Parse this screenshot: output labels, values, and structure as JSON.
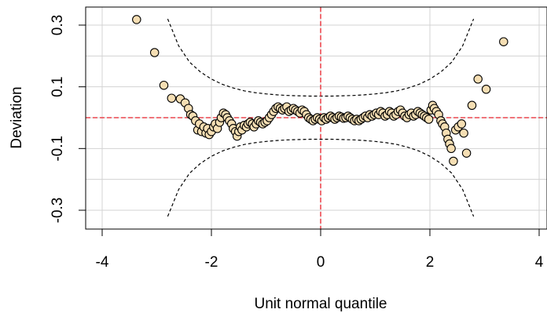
{
  "chart_data": {
    "type": "scatter",
    "title": "",
    "xlabel": "Unit normal quantile",
    "ylabel": "Deviation",
    "xlim": [
      -4,
      4
    ],
    "ylim": [
      -0.3,
      0.3
    ],
    "x_ticks": [
      -4,
      -2,
      0,
      2,
      4
    ],
    "x_tick_labels": [
      "-4",
      "-2",
      "0",
      "2",
      "4"
    ],
    "y_ticks": [
      -0.3,
      -0.1,
      0.1,
      0.3
    ],
    "y_tick_labels": [
      "-0.3",
      "-0.1",
      "0.1",
      "0.3"
    ],
    "grid": true,
    "colors": {
      "point_fill": "#f5deb3",
      "point_stroke": "#000000",
      "reference_line": "#e8202a",
      "envelope": "#000000",
      "grid": "#d3d3d3"
    },
    "reference_lines": {
      "horizontal_y": 0,
      "vertical_x": 0
    },
    "confidence_band": [
      [
        -2.8,
        -0.32,
        0.32
      ],
      [
        -2.6,
        -0.233,
        0.233
      ],
      [
        -2.4,
        -0.18,
        0.18
      ],
      [
        -2.2,
        -0.148,
        0.148
      ],
      [
        -2.0,
        -0.125,
        0.125
      ],
      [
        -1.8,
        -0.108,
        0.108
      ],
      [
        -1.6,
        -0.096,
        0.096
      ],
      [
        -1.4,
        -0.087,
        0.087
      ],
      [
        -1.2,
        -0.081,
        0.081
      ],
      [
        -1.0,
        -0.077,
        0.077
      ],
      [
        -0.8,
        -0.074,
        0.074
      ],
      [
        -0.6,
        -0.072,
        0.072
      ],
      [
        -0.4,
        -0.071,
        0.071
      ],
      [
        -0.2,
        -0.07,
        0.07
      ],
      [
        0.0,
        -0.07,
        0.07
      ],
      [
        0.2,
        -0.07,
        0.07
      ],
      [
        0.4,
        -0.071,
        0.071
      ],
      [
        0.6,
        -0.072,
        0.072
      ],
      [
        0.8,
        -0.074,
        0.074
      ],
      [
        1.0,
        -0.077,
        0.077
      ],
      [
        1.2,
        -0.081,
        0.081
      ],
      [
        1.4,
        -0.087,
        0.087
      ],
      [
        1.6,
        -0.096,
        0.096
      ],
      [
        1.8,
        -0.108,
        0.108
      ],
      [
        2.0,
        -0.125,
        0.125
      ],
      [
        2.2,
        -0.148,
        0.148
      ],
      [
        2.4,
        -0.18,
        0.18
      ],
      [
        2.6,
        -0.233,
        0.233
      ],
      [
        2.8,
        -0.32,
        0.32
      ]
    ],
    "series": [
      {
        "points": [
          [
            -3.37,
            0.318
          ],
          [
            -3.04,
            0.211
          ],
          [
            -2.87,
            0.105
          ],
          [
            -2.73,
            0.063
          ],
          [
            -2.57,
            0.061
          ],
          [
            -2.48,
            0.048
          ],
          [
            -2.42,
            0.03
          ],
          [
            -2.38,
            0.01
          ],
          [
            -2.34,
            0.005
          ],
          [
            -2.29,
            -0.01
          ],
          [
            -2.25,
            -0.04
          ],
          [
            -2.22,
            -0.02
          ],
          [
            -2.18,
            -0.045
          ],
          [
            -2.14,
            -0.03
          ],
          [
            -2.1,
            -0.05
          ],
          [
            -2.07,
            -0.035
          ],
          [
            -2.04,
            -0.055
          ],
          [
            -2.0,
            -0.045
          ],
          [
            -1.96,
            -0.03
          ],
          [
            -1.93,
            -0.02
          ],
          [
            -1.89,
            -0.035
          ],
          [
            -1.85,
            -0.015
          ],
          [
            -1.82,
            0.0
          ],
          [
            -1.78,
            0.015
          ],
          [
            -1.74,
            0.01
          ],
          [
            -1.71,
            0.0
          ],
          [
            -1.67,
            -0.01
          ],
          [
            -1.63,
            -0.02
          ],
          [
            -1.6,
            -0.035
          ],
          [
            -1.56,
            -0.045
          ],
          [
            -1.53,
            -0.06
          ],
          [
            -1.5,
            -0.045
          ],
          [
            -1.47,
            -0.03
          ],
          [
            -1.44,
            -0.04
          ],
          [
            -1.4,
            -0.025
          ],
          [
            -1.36,
            -0.03
          ],
          [
            -1.33,
            -0.02
          ],
          [
            -1.29,
            -0.015
          ],
          [
            -1.25,
            -0.02
          ],
          [
            -1.22,
            -0.03
          ],
          [
            -1.18,
            -0.02
          ],
          [
            -1.14,
            -0.01
          ],
          [
            -1.1,
            -0.015
          ],
          [
            -1.06,
            -0.02
          ],
          [
            -1.02,
            -0.015
          ],
          [
            -0.98,
            -0.01
          ],
          [
            -0.94,
            0.0
          ],
          [
            -0.9,
            0.01
          ],
          [
            -0.86,
            0.02
          ],
          [
            -0.82,
            0.03
          ],
          [
            -0.78,
            0.035
          ],
          [
            -0.74,
            0.03
          ],
          [
            -0.7,
            0.025
          ],
          [
            -0.66,
            0.03
          ],
          [
            -0.62,
            0.035
          ],
          [
            -0.58,
            0.02
          ],
          [
            -0.54,
            0.025
          ],
          [
            -0.5,
            0.03
          ],
          [
            -0.46,
            0.025
          ],
          [
            -0.42,
            0.02
          ],
          [
            -0.38,
            0.015
          ],
          [
            -0.34,
            0.025
          ],
          [
            -0.3,
            0.02
          ],
          [
            -0.26,
            0.01
          ],
          [
            -0.22,
            0.0
          ],
          [
            -0.18,
            -0.005
          ],
          [
            -0.14,
            -0.01
          ],
          [
            -0.1,
            -0.005
          ],
          [
            -0.06,
            0.0
          ],
          [
            -0.02,
            -0.005
          ],
          [
            0.02,
            -0.01
          ],
          [
            0.06,
            0.0
          ],
          [
            0.1,
            -0.005
          ],
          [
            0.14,
            0.0
          ],
          [
            0.18,
            0.005
          ],
          [
            0.22,
            0.0
          ],
          [
            0.26,
            -0.005
          ],
          [
            0.3,
            0.0
          ],
          [
            0.34,
            0.005
          ],
          [
            0.38,
            0.002
          ],
          [
            0.42,
            -0.002
          ],
          [
            0.46,
            0.0
          ],
          [
            0.5,
            0.005
          ],
          [
            0.54,
            0.0
          ],
          [
            0.58,
            -0.005
          ],
          [
            0.62,
            -0.01
          ],
          [
            0.66,
            -0.005
          ],
          [
            0.7,
            -0.01
          ],
          [
            0.74,
            -0.005
          ],
          [
            0.78,
            0.0
          ],
          [
            0.82,
            0.005
          ],
          [
            0.86,
            0.0
          ],
          [
            0.9,
            0.01
          ],
          [
            0.94,
            0.005
          ],
          [
            0.98,
            0.01
          ],
          [
            1.02,
            0.015
          ],
          [
            1.06,
            0.01
          ],
          [
            1.1,
            0.02
          ],
          [
            1.14,
            0.015
          ],
          [
            1.18,
            0.005
          ],
          [
            1.22,
            0.01
          ],
          [
            1.26,
            0.02
          ],
          [
            1.3,
            0.015
          ],
          [
            1.34,
            0.005
          ],
          [
            1.38,
            0.01
          ],
          [
            1.42,
            0.02
          ],
          [
            1.46,
            0.025
          ],
          [
            1.5,
            0.015
          ],
          [
            1.54,
            0.005
          ],
          [
            1.58,
            0.0
          ],
          [
            1.62,
            0.01
          ],
          [
            1.66,
            0.015
          ],
          [
            1.7,
            0.005
          ],
          [
            1.74,
            0.01
          ],
          [
            1.78,
            0.02
          ],
          [
            1.82,
            0.015
          ],
          [
            1.86,
            0.01
          ],
          [
            1.9,
            0.005
          ],
          [
            1.94,
            0.0
          ],
          [
            1.98,
            -0.005
          ],
          [
            2.02,
            0.025
          ],
          [
            2.05,
            0.04
          ],
          [
            2.08,
            0.03
          ],
          [
            2.12,
            0.02
          ],
          [
            2.16,
            0.01
          ],
          [
            2.2,
            -0.01
          ],
          [
            2.23,
            -0.02
          ],
          [
            2.27,
            -0.03
          ],
          [
            2.3,
            -0.05
          ],
          [
            2.33,
            -0.07
          ],
          [
            2.36,
            -0.085
          ],
          [
            2.39,
            -0.1
          ],
          [
            2.43,
            -0.141
          ],
          [
            2.47,
            -0.04
          ],
          [
            2.52,
            -0.03
          ],
          [
            2.58,
            -0.02
          ],
          [
            2.62,
            -0.05
          ],
          [
            2.67,
            -0.115
          ],
          [
            2.77,
            0.04
          ],
          [
            2.88,
            0.125
          ],
          [
            3.03,
            0.092
          ],
          [
            3.35,
            0.246
          ]
        ]
      }
    ]
  }
}
